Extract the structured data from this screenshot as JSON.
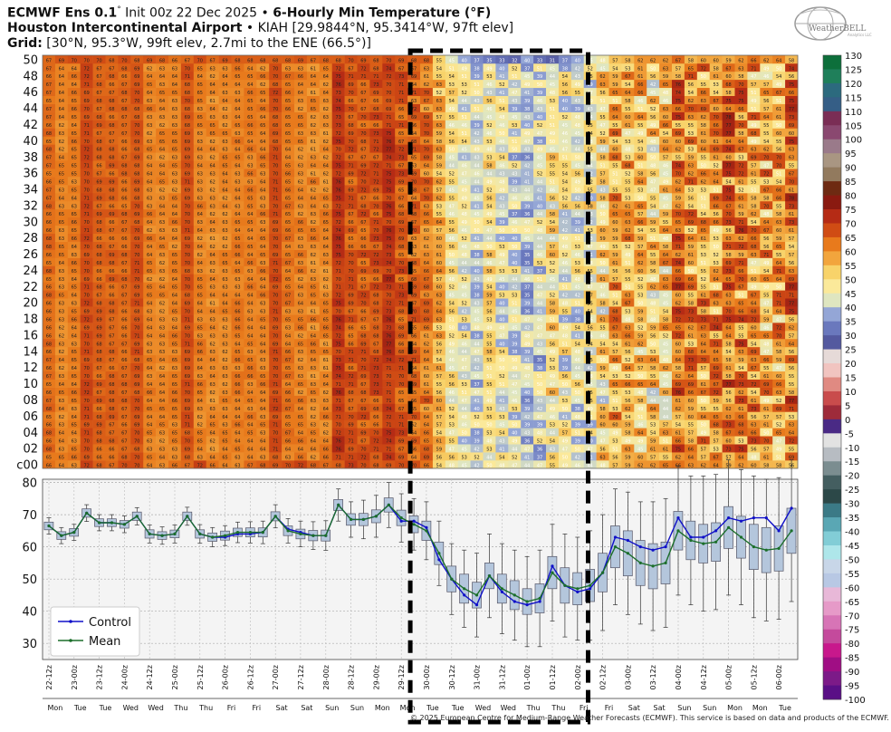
{
  "header": {
    "line1_model": "ECMWF Ens 0.1",
    "line1_deg": "°",
    "line1_init": " Init 00z 22 Dec 2025 • ",
    "line1_title": "6-Hourly Min Temperature (°F)",
    "line2_station": "Houston Intercontinental Airport",
    "line2_rest": " • KIAH [29.9844°N, 95.3414°W, 97ft elev]",
    "line3_label": "Grid:",
    "line3_rest": " [30°N, 95.3°W, 99ft elev, 2.7mi to the ENE (66.5°)]"
  },
  "logo": {
    "text": "WeatherBELL",
    "sub": "Analytics LLC",
    "icon": "weatherbell-globe-logo"
  },
  "footer": "© 2025 European Centre for Medium-Range Weather Forecasts (ECMWF). This service is based on data and products of the ECMWF.",
  "colors": {
    "control": "#1010c8",
    "mean": "#1b6e2a",
    "box_fill": "#b4c6dc",
    "plot_bg": "#f4f4f4",
    "highlight_border": "#000000"
  },
  "chart_data": [
    {
      "type": "heatmap",
      "title": "6-Hourly Min Temperature (°F)",
      "ylabel_members": [
        "50",
        "48",
        "46",
        "44",
        "42",
        "40",
        "38",
        "36",
        "34",
        "32",
        "30",
        "28",
        "26",
        "24",
        "22",
        "20",
        "18",
        "16",
        "14",
        "12",
        "10",
        "08",
        "06",
        "04",
        "02",
        "c00"
      ],
      "n_members": 51,
      "n_times": 60,
      "members_shown": "control + 50 members",
      "time_steps_per_day": 4,
      "colorbar": {
        "ticks": [
          130,
          125,
          120,
          115,
          110,
          105,
          100,
          95,
          90,
          85,
          80,
          75,
          70,
          65,
          60,
          55,
          50,
          45,
          40,
          35,
          30,
          25,
          20,
          15,
          10,
          5,
          0,
          -5,
          -10,
          -15,
          -20,
          -25,
          -30,
          -35,
          -40,
          -45,
          -50,
          -55,
          -60,
          -65,
          -70,
          -75,
          -80,
          -85,
          -90,
          -95,
          -100
        ],
        "colors": [
          "#0d6f3b",
          "#1f7f5a",
          "#2c6a7e",
          "#355e86",
          "#7a2d55",
          "#8a4870",
          "#9a7a8a",
          "#a99682",
          "#927a5e",
          "#6e2a12",
          "#8a1a10",
          "#b52b15",
          "#d04c14",
          "#e87a1c",
          "#f2a53d",
          "#f8d36a",
          "#fbe99a",
          "#dfe6c0",
          "#94a6d6",
          "#6a78bd",
          "#54599f",
          "#e6dad8",
          "#f1c4c0",
          "#e08a82",
          "#c94c4c",
          "#9e2b3a",
          "#4a2a85",
          "#e2e2e2",
          "#b7bcc2",
          "#7b8d90",
          "#445e60",
          "#2c4848",
          "#3b7a86",
          "#5aa7b4",
          "#82cdd6",
          "#aee6ea",
          "#c8d6e8",
          "#b8c8e4",
          "#e8b8d8",
          "#e69ac8",
          "#d774b6",
          "#c44a9c",
          "#c8188c",
          "#a00e84",
          "#7c1a88",
          "#5a0f86",
          "#3a0a7c"
        ]
      },
      "highlight_window": "29-12z to 01-18z",
      "sample_rows": {
        "50": [
          67,
          69,
          70,
          70,
          70,
          68,
          70,
          68,
          69,
          68,
          66,
          67,
          70,
          67,
          69,
          68,
          68,
          68,
          68,
          68,
          69,
          67,
          68,
          68,
          70,
          69,
          68,
          70,
          69,
          68,
          68,
          55,
          45,
          40,
          37,
          35,
          33,
          32,
          40,
          33,
          31,
          37,
          40,
          45,
          48,
          57,
          58,
          62,
          62,
          62,
          67,
          58,
          60,
          60,
          59,
          62,
          66,
          62,
          64,
          58
        ],
        "c00": [
          66,
          64,
          63,
          72,
          68,
          67,
          70,
          70,
          64,
          63,
          66,
          67,
          72,
          66,
          64,
          63,
          67,
          68,
          69,
          70,
          72,
          68,
          67,
          68,
          73,
          70,
          68,
          69,
          70,
          70,
          66,
          54,
          48,
          45,
          42,
          50,
          48,
          47,
          44,
          47,
          55,
          49,
          46,
          44,
          48,
          57,
          59,
          62,
          62,
          65,
          66,
          63,
          62,
          64,
          59,
          62,
          60,
          58,
          58,
          56
        ]
      },
      "cmin": -100,
      "cmax": 130
    },
    {
      "type": "line",
      "title": "",
      "ylim": [
        25,
        81
      ],
      "yticks": [
        30,
        40,
        50,
        60,
        70,
        80
      ],
      "legend_position": "bottom-left",
      "grid": true,
      "x_labels": [
        "22-12z",
        "23-00z",
        "23-12z",
        "24-00z",
        "24-12z",
        "25-00z",
        "25-12z",
        "26-00z",
        "26-12z",
        "27-00z",
        "27-12z",
        "28-00z",
        "28-12z",
        "29-00z",
        "29-12z",
        "30-00z",
        "30-12z",
        "31-00z",
        "31-12z",
        "01-00z",
        "01-12z",
        "02-00z",
        "02-12z",
        "03-00z",
        "03-12z",
        "04-00z",
        "04-12z",
        "05-00z",
        "05-12z",
        "06-00z"
      ],
      "day_labels": [
        "Mon",
        "Tue",
        "Tue",
        "Wed",
        "Wed",
        "Thu",
        "Thu",
        "Fri",
        "Fri",
        "Sat",
        "Sat",
        "Sun",
        "Sun",
        "Mon",
        "Mon",
        "Tue",
        "Tue",
        "Wed",
        "Wed",
        "Thu",
        "Thu",
        "Fri",
        "Fri",
        "Sat",
        "Sat",
        "Sun",
        "Sun",
        "Mon",
        "Mon",
        "Tue"
      ],
      "series": [
        {
          "name": "Control",
          "values": [
            66.5,
            63.5,
            64.5,
            70.5,
            67.5,
            67.5,
            67.0,
            69.5,
            64.0,
            63.5,
            64.0,
            69.5,
            64.0,
            63.0,
            63.0,
            64.0,
            64.0,
            64.5,
            69.5,
            65.5,
            64.5,
            63.5,
            63.5,
            73.0,
            68.5,
            68.5,
            69.5,
            73.0,
            68.0,
            68.0,
            66.0,
            56.0,
            50.0,
            45.0,
            42.0,
            51.0,
            46.0,
            43.0,
            42.0,
            43.0,
            54.0,
            48.0,
            46.0,
            47.0,
            52.0,
            63.0,
            62.0,
            60.0,
            59.0,
            60.0,
            69.0,
            63.0,
            63.0,
            65.0,
            69.0,
            68.0,
            69.0,
            69.0,
            65.0,
            72.0
          ]
        },
        {
          "name": "Mean",
          "values": [
            66.5,
            63.5,
            64.5,
            70.5,
            67.5,
            67.5,
            67.0,
            69.5,
            64.0,
            63.5,
            64.0,
            69.5,
            64.0,
            63.0,
            63.5,
            64.5,
            64.5,
            64.5,
            69.5,
            65.0,
            64.0,
            63.5,
            63.5,
            73.0,
            68.5,
            68.5,
            69.5,
            73.0,
            69.0,
            67.0,
            65.0,
            58.0,
            50.0,
            47.0,
            45.0,
            51.0,
            47.0,
            45.0,
            43.0,
            44.0,
            52.0,
            48.0,
            47.0,
            48.0,
            52.0,
            60.0,
            58.0,
            55.0,
            54.0,
            55.0,
            65.0,
            62.0,
            61.0,
            61.5,
            66.0,
            63.0,
            60.0,
            59.0,
            59.5,
            65.0
          ]
        }
      ],
      "boxes": {
        "q1_offset": [
          -1.2,
          -1.2,
          -1.2,
          -1.3,
          -1.2,
          -1.2,
          -1.2,
          -1.3,
          -1.3,
          -1.2,
          -1.2,
          -1.3,
          -1.3,
          -1.3,
          -1.4,
          -1.3,
          -1.4,
          -1.4,
          -1.4,
          -1.5,
          -1.5,
          -1.6,
          -1.7,
          -1.7,
          -1.8,
          -1.9,
          -2.0,
          -2.2,
          -2.4,
          -2.6,
          -3.0,
          -3.5,
          -4.0,
          -4.5,
          -4.0,
          -4.0,
          -4.5,
          -4.5,
          -4.0,
          -4.5,
          -5.0,
          -5.5,
          -5.0,
          -5.0,
          -6.0,
          -6.5,
          -7.0,
          -7.0,
          -7.0,
          -6.5,
          -6.0,
          -6.0,
          -6.0,
          -6.0,
          -6.5,
          -6.5,
          -7.0,
          -7.0,
          -7.0,
          -7.0
        ],
        "q3_offset": [
          1.2,
          1.2,
          1.2,
          1.3,
          1.2,
          1.2,
          1.2,
          1.3,
          1.3,
          1.2,
          1.2,
          1.3,
          1.3,
          1.3,
          1.4,
          1.3,
          1.4,
          1.4,
          1.4,
          1.5,
          1.5,
          1.6,
          1.7,
          1.7,
          1.8,
          1.9,
          2.0,
          2.2,
          2.4,
          2.6,
          3.0,
          3.5,
          4.0,
          4.5,
          4.0,
          4.0,
          4.5,
          4.5,
          4.0,
          4.5,
          5.0,
          5.5,
          5.0,
          5.0,
          6.0,
          6.5,
          7.0,
          7.0,
          7.0,
          6.5,
          6.0,
          6.0,
          6.0,
          6.0,
          6.5,
          6.5,
          7.0,
          7.0,
          7.0,
          7.0
        ],
        "whisker_offset": [
          2.5,
          2.5,
          2.5,
          2.6,
          2.5,
          2.5,
          2.6,
          2.7,
          2.8,
          2.7,
          2.8,
          2.8,
          2.9,
          3.0,
          3.1,
          3.2,
          3.3,
          3.5,
          3.6,
          3.8,
          4.0,
          4.3,
          4.6,
          5.0,
          5.5,
          6.0,
          6.5,
          7.0,
          7.5,
          8.0,
          9.0,
          10.0,
          11.0,
          12.0,
          13.0,
          13.0,
          14.0,
          14.0,
          14.0,
          15.0,
          15.0,
          16.0,
          16.0,
          17.0,
          18.0,
          18.0,
          19.0,
          19.0,
          20.0,
          20.0,
          20.0,
          20.0,
          21.0,
          21.0,
          21.0,
          21.0,
          22.0,
          22.0,
          22.0,
          22.0
        ]
      }
    }
  ]
}
